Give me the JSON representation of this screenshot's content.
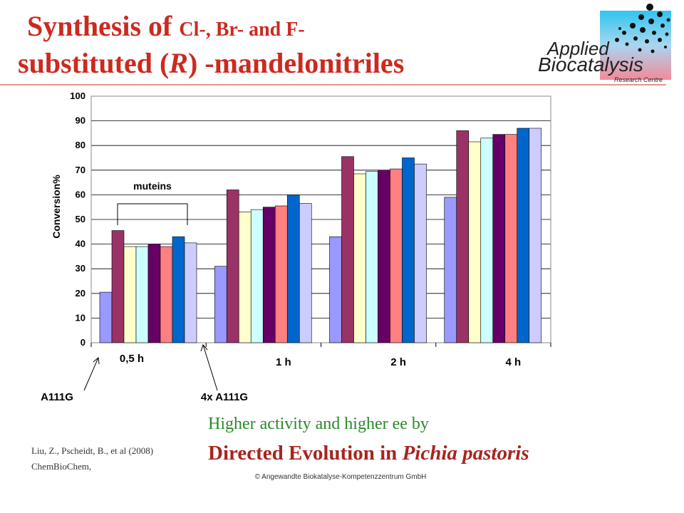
{
  "chart_data": {
    "type": "bar",
    "title": [
      "Synthesis of ",
      "Cl-, Br- and F-",
      "substituted (",
      "R",
      ") -mandelonitriles"
    ],
    "y_label": "Conversion%",
    "categories": [
      "0,5 h",
      "1 h",
      "2 h",
      "4 h"
    ],
    "series": [
      {
        "color": "#9999ff",
        "values": [
          20.5,
          31,
          43,
          59
        ]
      },
      {
        "color": "#993366",
        "values": [
          45.5,
          62,
          75.5,
          86
        ]
      },
      {
        "color": "#ffffcc",
        "values": [
          39,
          53,
          68.5,
          81.5
        ]
      },
      {
        "color": "#ccffff",
        "values": [
          39,
          54,
          69.5,
          83
        ]
      },
      {
        "color": "#660066",
        "values": [
          40,
          55,
          70,
          84.5
        ]
      },
      {
        "color": "#ff8080",
        "values": [
          39,
          55.5,
          70.5,
          84.5
        ]
      },
      {
        "color": "#0066cc",
        "values": [
          43,
          60,
          75,
          87
        ]
      },
      {
        "color": "#ccccff",
        "values": [
          40.5,
          56.5,
          72.5,
          87
        ]
      }
    ],
    "ylim": [
      0,
      100
    ],
    "yticks": [
      0,
      10,
      20,
      30,
      40,
      50,
      60,
      70,
      80,
      90,
      100
    ],
    "grid": true,
    "annotations": [
      "muteins",
      "A111G",
      "4x A111G"
    ]
  },
  "slide": {
    "subtitle": [
      "Higher activity and higher ee by",
      "Directed Evolution in ",
      "Pichia pastoris"
    ],
    "citation": [
      "Liu, Z., Pscheidt, B., et al (2008)",
      "ChemBioChem,"
    ],
    "footer": "© Angewandte Biokatalyse-Kompetenzzentrum GmbH",
    "logo": [
      "Applied",
      "Biocatalysis",
      "Research Centre"
    ]
  }
}
